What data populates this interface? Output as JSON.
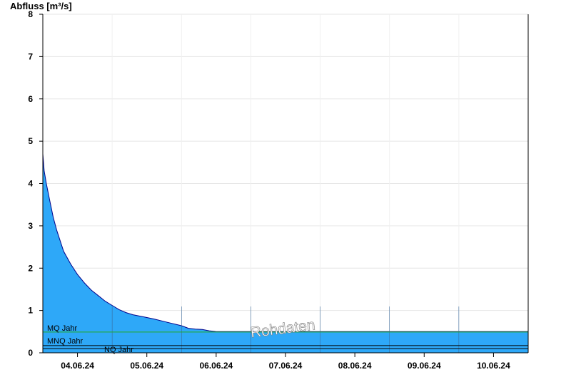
{
  "chart_data": {
    "type": "area",
    "title": "",
    "ylabel": "Abfluss [m³/s]",
    "xlabel": "",
    "ylim": [
      0,
      8
    ],
    "yticks": [
      "0",
      "1",
      "2",
      "3",
      "4",
      "5",
      "6",
      "7",
      "8"
    ],
    "x_range": [
      0,
      7
    ],
    "x_unit": "days since 03.06.24 12:00",
    "xtick_labels": [
      "04.06.24",
      "05.06.24",
      "06.06.24",
      "07.06.24",
      "08.06.24",
      "09.06.24",
      "10.06.24"
    ],
    "grid": true,
    "fill_color": "#2ea8f8",
    "line_color": "#00008b",
    "series": [
      {
        "name": "Abfluss",
        "x": [
          0,
          0.02,
          0.05,
          0.1,
          0.15,
          0.2,
          0.3,
          0.4,
          0.5,
          0.6,
          0.7,
          0.8,
          0.9,
          1.0,
          1.1,
          1.2,
          1.3,
          1.45,
          1.6,
          1.8,
          2.0,
          2.1,
          2.2,
          2.3,
          2.4,
          2.5,
          2.58,
          2.62,
          2.66,
          2.7,
          2.74,
          2.78,
          2.82,
          2.88,
          2.92,
          2.94,
          2.96,
          2.98,
          3.0,
          3.02,
          3.04,
          3.07,
          3.1,
          3.15,
          3.2,
          3.25,
          3.3,
          3.35,
          3.4,
          3.45,
          3.5,
          3.55,
          3.6,
          3.63,
          3.66,
          3.68,
          3.7,
          3.72,
          3.74,
          3.76,
          3.78,
          3.8,
          3.85,
          3.9,
          3.95,
          4.0,
          4.1,
          4.2,
          4.3,
          4.4,
          4.5,
          4.6,
          4.7,
          4.75,
          4.8,
          4.9,
          5.0,
          5.1,
          5.2,
          5.3,
          5.35,
          5.4,
          5.5,
          5.6,
          5.7,
          5.8,
          5.9,
          5.95,
          6.0,
          6.03,
          6.06,
          6.08,
          6.1,
          6.15,
          6.2,
          6.3,
          6.35,
          6.4,
          6.45,
          6.48,
          6.5,
          6.53,
          6.56,
          6.6,
          6.65,
          6.7,
          6.75,
          6.8,
          6.85,
          6.9,
          6.95,
          7.0
        ],
        "y": [
          4.7,
          4.3,
          4.0,
          3.6,
          3.2,
          2.9,
          2.4,
          2.1,
          1.85,
          1.65,
          1.48,
          1.35,
          1.22,
          1.12,
          1.02,
          0.95,
          0.9,
          0.85,
          0.8,
          0.72,
          0.64,
          0.58,
          0.56,
          0.55,
          0.52,
          0.5,
          0.5,
          0.5,
          0.5,
          0.5,
          0.5,
          0.5,
          0.5,
          0.5,
          0.5,
          0.5,
          0.5,
          0.5,
          0.5,
          0.5,
          0.5,
          0.5,
          0.5,
          0.5,
          0.5,
          0.5,
          0.5,
          0.5,
          0.5,
          0.5,
          0.5,
          0.5,
          0.5,
          0.5,
          0.5,
          0.5,
          0.5,
          0.5,
          0.5,
          0.5,
          0.5,
          0.5,
          0.5,
          0.5,
          0.5,
          0.5,
          0.5,
          0.5,
          0.5,
          0.5,
          0.5,
          0.5,
          0.5,
          0.5,
          0.5,
          0.5,
          0.5,
          0.5,
          0.5,
          0.5,
          0.5,
          0.5,
          0.5,
          0.5,
          0.5,
          0.5,
          0.5,
          0.5,
          0.5,
          0.5,
          0.5,
          0.5,
          0.5,
          0.5,
          0.5,
          0.5,
          0.5,
          0.5,
          0.5,
          0.5,
          0.5,
          0.5,
          0.5,
          0.5,
          0.5,
          0.5,
          0.5,
          0.5,
          0.5,
          0.5,
          0.5,
          0.5
        ]
      }
    ],
    "reference_lines": [
      {
        "label": "MQ Jahr",
        "value": 0.49,
        "color": "#22aa22"
      },
      {
        "label": "MNQ Jahr",
        "value": 0.17,
        "color": "#000000"
      },
      {
        "label": "NQ Jahr",
        "value": 0.1,
        "color": "#000000"
      }
    ],
    "watermark": "Rohdaten"
  }
}
